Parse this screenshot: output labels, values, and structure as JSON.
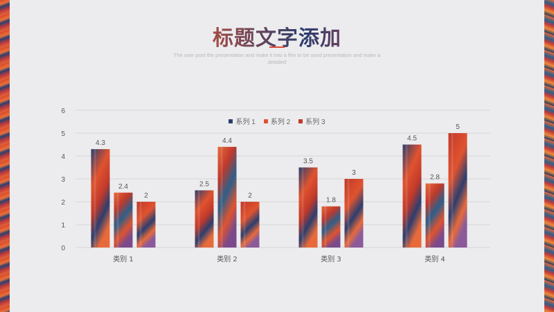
{
  "page": {
    "title": "标题文字添加",
    "subtitle": "The user post the presentation and make it into a film to be used presentation and make a detailed"
  },
  "colors": {
    "series1": "#2c3e6f",
    "series2": "#e0532f",
    "series3": "#c0392b",
    "grid": "#d6d6da",
    "axis_text": "#555555"
  },
  "chart_data": {
    "type": "bar",
    "categories": [
      "类别 1",
      "类别 2",
      "类别 3",
      "类别 4"
    ],
    "series": [
      {
        "name": "系列 1",
        "values": [
          4.3,
          2.5,
          3.5,
          4.5
        ]
      },
      {
        "name": "系列 2",
        "values": [
          2.4,
          4.4,
          1.8,
          2.8
        ]
      },
      {
        "name": "系列 3",
        "values": [
          2,
          2,
          3,
          5
        ]
      }
    ],
    "ylim": [
      0,
      6
    ],
    "yticks": [
      0,
      1,
      2,
      3,
      4,
      5,
      6
    ],
    "xlabel": "",
    "ylabel": "",
    "grid": true,
    "legend_position": "top",
    "data_labels": true
  }
}
